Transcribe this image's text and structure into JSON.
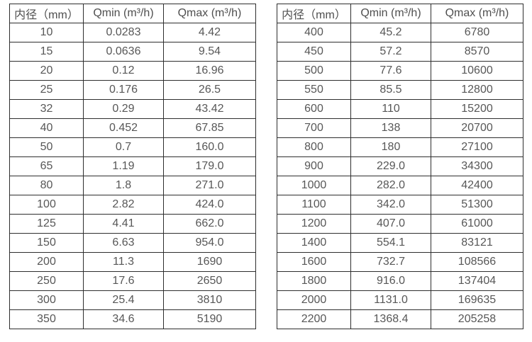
{
  "colors": {
    "background": "#ffffff",
    "border": "#2e2e2e",
    "text": "#575757"
  },
  "tables": [
    {
      "name": "small-diameters",
      "headers": [
        "内径（mm）",
        "Qmin (m³/h)",
        "Qmax (m³/h)"
      ],
      "rows": [
        [
          "10",
          "0.0283",
          "4.42"
        ],
        [
          "15",
          "0.0636",
          "9.54"
        ],
        [
          "20",
          "0.12",
          "16.96"
        ],
        [
          "25",
          "0.176",
          "26.5"
        ],
        [
          "32",
          "0.29",
          "43.42"
        ],
        [
          "40",
          "0.452",
          "67.85"
        ],
        [
          "50",
          "0.7",
          "160.0"
        ],
        [
          "65",
          "1.19",
          "179.0"
        ],
        [
          "80",
          "1.8",
          "271.0"
        ],
        [
          "100",
          "2.82",
          "424.0"
        ],
        [
          "125",
          "4.41",
          "662.0"
        ],
        [
          "150",
          "6.63",
          "954.0"
        ],
        [
          "200",
          "11.3",
          "1690"
        ],
        [
          "250",
          "17.6",
          "2650"
        ],
        [
          "300",
          "25.4",
          "3810"
        ],
        [
          "350",
          "34.6",
          "5190"
        ]
      ]
    },
    {
      "name": "large-diameters",
      "headers": [
        "内径（mm）",
        "Qmin (m³/h)",
        "Qmax (m³/h)"
      ],
      "rows": [
        [
          "400",
          "45.2",
          "6780"
        ],
        [
          "450",
          "57.2",
          "8570"
        ],
        [
          "500",
          "77.6",
          "10600"
        ],
        [
          "550",
          "85.5",
          "12800"
        ],
        [
          "600",
          "110",
          "15200"
        ],
        [
          "700",
          "138",
          "20700"
        ],
        [
          "800",
          "180",
          "27100"
        ],
        [
          "900",
          "229.0",
          "34300"
        ],
        [
          "1000",
          "282.0",
          "42400"
        ],
        [
          "1100",
          "342.0",
          "51300"
        ],
        [
          "1200",
          "407.0",
          "61000"
        ],
        [
          "1400",
          "554.1",
          "83121"
        ],
        [
          "1600",
          "732.7",
          "108566"
        ],
        [
          "1800",
          "916.0",
          "137404"
        ],
        [
          "2000",
          "1131.0",
          "169635"
        ],
        [
          "2200",
          "1368.4",
          "205258"
        ]
      ]
    }
  ]
}
